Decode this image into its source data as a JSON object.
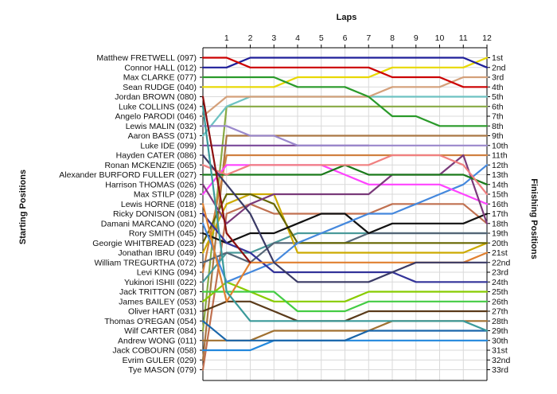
{
  "chart_data": {
    "type": "line",
    "title": "Laps",
    "xlabel": "Laps",
    "ylabel_left": "Starting Positions",
    "ylabel_right": "Finishing Positions",
    "x": [
      0,
      1,
      2,
      3,
      4,
      5,
      6,
      7,
      8,
      9,
      10,
      11,
      12
    ],
    "x_tick_labels": [
      "1",
      "2",
      "3",
      "4",
      "5",
      "6",
      "7",
      "8",
      "9",
      "10",
      "11",
      "12"
    ],
    "ylim": [
      1,
      33
    ],
    "grid": true,
    "finishing_labels": [
      "1st",
      "2nd",
      "3rd",
      "4th",
      "5th",
      "6th",
      "7th",
      "8th",
      "9th",
      "10th",
      "11th",
      "12th",
      "13th",
      "14th",
      "15th",
      "16th",
      "17th",
      "18th",
      "19th",
      "20th",
      "21st",
      "22nd",
      "23rd",
      "24th",
      "25th",
      "26th",
      "27th",
      "28th",
      "29th",
      "30th",
      "31st",
      "32nd",
      "33rd"
    ],
    "series": [
      {
        "name": "Matthew FRETWELL (097)",
        "color": "#cc0000",
        "values": [
          1,
          1,
          2,
          2,
          2,
          2,
          2,
          2,
          3,
          3,
          3,
          4,
          4
        ]
      },
      {
        "name": "Connor HALL (012)",
        "color": "#1f1f99",
        "values": [
          2,
          2,
          1,
          1,
          1,
          1,
          1,
          1,
          1,
          1,
          1,
          1,
          2
        ]
      },
      {
        "name": "Max CLARKE (077)",
        "color": "#2a9a2a",
        "values": [
          3,
          3,
          3,
          3,
          4,
          4,
          4,
          5,
          7,
          7,
          8,
          8,
          8
        ]
      },
      {
        "name": "Sean RUDGE (040)",
        "color": "#e8d800",
        "values": [
          4,
          4,
          4,
          4,
          3,
          3,
          3,
          3,
          2,
          2,
          2,
          2,
          1
        ]
      },
      {
        "name": "Jordan BROWN (080)",
        "color": "#8b1010",
        "values": [
          5,
          19,
          22,
          null,
          null,
          null,
          null,
          null,
          null,
          null,
          null,
          null,
          null
        ]
      },
      {
        "name": "Luke COLLINS (024)",
        "color": "#3a9a9a",
        "values": [
          6,
          25,
          28,
          28,
          28,
          28,
          28,
          28,
          28,
          28,
          28,
          28,
          29
        ]
      },
      {
        "name": "Angelo PARODI (046)",
        "color": "#d4a07a",
        "values": [
          7,
          5,
          5,
          5,
          5,
          5,
          5,
          5,
          4,
          4,
          4,
          3,
          3
        ]
      },
      {
        "name": "Lewis MALIN (032)",
        "color": "#9a88cc",
        "values": [
          8,
          8,
          9,
          9,
          10,
          10,
          10,
          10,
          10,
          10,
          10,
          10,
          10
        ]
      },
      {
        "name": "Aaron BASS (071)",
        "color": "#6dc2c2",
        "values": [
          9,
          6,
          5,
          5,
          5,
          5,
          5,
          5,
          5,
          5,
          5,
          5,
          5
        ]
      },
      {
        "name": "Luke IDE (099)",
        "color": "#7a4a9a",
        "values": [
          10,
          10,
          10,
          10,
          10,
          10,
          10,
          10,
          null,
          null,
          null,
          null,
          null
        ]
      },
      {
        "name": "Hayden CATER (086)",
        "color": "#3a3a66",
        "values": [
          11,
          14,
          17,
          22,
          24,
          24,
          24,
          24,
          23,
          22,
          22,
          22,
          22
        ]
      },
      {
        "name": "Ronan MCKENZIE (065)",
        "color": "#f08080",
        "values": [
          12,
          13,
          12,
          12,
          12,
          12,
          12,
          12,
          11,
          11,
          11,
          12,
          15
        ]
      },
      {
        "name": "Alexander BURFORD FULLER (027)",
        "color": "#1a7a1a",
        "values": [
          13,
          13,
          13,
          13,
          13,
          13,
          12,
          13,
          13,
          13,
          13,
          13,
          14
        ]
      },
      {
        "name": "Harrison THOMAS (026)",
        "color": "#7a3a7a",
        "values": [
          14,
          18,
          16,
          15,
          15,
          15,
          15,
          15,
          13,
          13,
          13,
          11,
          18
        ]
      },
      {
        "name": "Max STILP (028)",
        "color": "#ff44ff",
        "values": [
          15,
          12,
          12,
          12,
          12,
          12,
          13,
          14,
          14,
          14,
          14,
          15,
          16
        ]
      },
      {
        "name": "Lewis HORNE (018)",
        "color": "#e08030",
        "values": [
          16,
          26,
          22,
          22,
          22,
          22,
          22,
          22,
          22,
          22,
          22,
          22,
          21
        ]
      },
      {
        "name": "Ricky DONISON (081)",
        "color": "#333399",
        "values": [
          17,
          20,
          21,
          23,
          23,
          23,
          23,
          23,
          23,
          24,
          24,
          24,
          24
        ]
      },
      {
        "name": "Damani MARCANO (020)",
        "color": "#4488dd",
        "values": [
          18,
          24,
          23,
          22,
          20,
          19,
          18,
          17,
          17,
          16,
          15,
          14,
          12
        ]
      },
      {
        "name": "Rory SMITH (045)",
        "color": "#111111",
        "values": [
          19,
          20,
          19,
          19,
          18,
          17,
          17,
          19,
          18,
          18,
          18,
          18,
          17
        ]
      },
      {
        "name": "Georgie WHITBREAD (023)",
        "color": "#666600",
        "values": [
          20,
          15,
          15,
          16,
          20,
          20,
          20,
          20,
          20,
          20,
          20,
          20,
          20
        ]
      },
      {
        "name": "Jonathan IBRU (049)",
        "color": "#ccaa00",
        "values": [
          21,
          16,
          15,
          15,
          21,
          21,
          21,
          21,
          21,
          21,
          21,
          21,
          20
        ]
      },
      {
        "name": "William TREGURTHA (072)",
        "color": "#556677",
        "values": [
          22,
          21,
          22,
          20,
          20,
          20,
          20,
          19,
          19,
          19,
          19,
          19,
          19
        ]
      },
      {
        "name": "Levi KING (094)",
        "color": "#d08040",
        "values": [
          23,
          11,
          11,
          11,
          11,
          11,
          11,
          11,
          11,
          11,
          11,
          11,
          11
        ]
      },
      {
        "name": "Yukinori ISHII (022)",
        "color": "#4a9a9a",
        "values": [
          24,
          21,
          21,
          20,
          19,
          19,
          19,
          19,
          19,
          19,
          19,
          19,
          19
        ]
      },
      {
        "name": "Jack TRITTON (087)",
        "color": "#44cc44",
        "values": [
          25,
          25,
          25,
          25,
          27,
          27,
          27,
          26,
          26,
          26,
          26,
          26,
          26
        ]
      },
      {
        "name": "James BAILEY (053)",
        "color": "#88cc00",
        "values": [
          26,
          24,
          25,
          26,
          26,
          26,
          26,
          25,
          25,
          25,
          25,
          25,
          25
        ]
      },
      {
        "name": "Oliver HART (031)",
        "color": "#5a3a1a",
        "values": [
          27,
          26,
          26,
          27,
          28,
          28,
          28,
          27,
          27,
          27,
          27,
          27,
          27
        ]
      },
      {
        "name": "Thomas O'REGAN (054)",
        "color": "#1a66aa",
        "values": [
          28,
          30,
          30,
          30,
          30,
          30,
          30,
          29,
          29,
          29,
          29,
          29,
          29
        ]
      },
      {
        "name": "Wilf CARTER (084)",
        "color": "#88aa44",
        "values": [
          29,
          6,
          6,
          6,
          6,
          6,
          6,
          6,
          6,
          6,
          6,
          6,
          6
        ]
      },
      {
        "name": "Andrew WONG (011)",
        "color": "#a07030",
        "values": [
          30,
          30,
          30,
          29,
          29,
          29,
          29,
          29,
          28,
          28,
          28,
          28,
          28
        ]
      },
      {
        "name": "Jack COBOURN (058)",
        "color": "#2288dd",
        "values": [
          31,
          31,
          31,
          30,
          30,
          30,
          30,
          30,
          30,
          30,
          30,
          30,
          30
        ]
      },
      {
        "name": "Evrim GULER (029)",
        "color": "#aa7744",
        "values": [
          32,
          9,
          9,
          9,
          9,
          9,
          9,
          9,
          9,
          9,
          9,
          9,
          9
        ]
      },
      {
        "name": "Tye MASON (079)",
        "color": "#c07050",
        "values": [
          33,
          17,
          16,
          17,
          17,
          17,
          17,
          17,
          16,
          16,
          16,
          16,
          18
        ]
      }
    ]
  }
}
